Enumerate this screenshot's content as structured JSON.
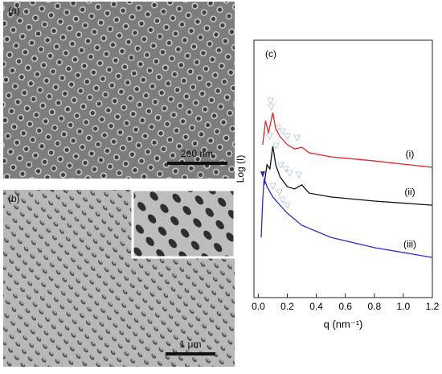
{
  "panels": {
    "a": {
      "label": "(a)",
      "scale_bar": "200 nm"
    },
    "b": {
      "label": "(b)",
      "scale_bar": "1 μm"
    }
  },
  "chart_data": {
    "type": "line",
    "panel_label": "(c)",
    "xlabel": "q (nm⁻¹)",
    "ylabel": "Log (I)",
    "xlim": [
      -0.03,
      1.2
    ],
    "ylim": [
      0,
      10
    ],
    "xticks": [
      {
        "value": 0,
        "label": "0.0"
      },
      0.2,
      0.4,
      0.6,
      0.8,
      {
        "value": 1,
        "label": "1.0"
      },
      1.2
    ],
    "series": [
      {
        "name": "(i)",
        "color": "#e8232a",
        "x": [
          0.03,
          0.05,
          0.07,
          0.1,
          0.12,
          0.15,
          0.2,
          0.25,
          0.3,
          0.35,
          0.5,
          0.8,
          1.2
        ],
        "values": [
          5.94,
          6.88,
          6.4,
          7.19,
          6.56,
          6.25,
          5.94,
          5.78,
          5.84,
          5.63,
          5.47,
          5.31,
          5.06
        ]
      },
      {
        "name": "(ii)",
        "color": "#111111",
        "x": [
          0.04,
          0.06,
          0.08,
          0.1,
          0.12,
          0.15,
          0.2,
          0.25,
          0.3,
          0.35,
          0.5,
          0.8,
          1.2
        ],
        "values": [
          4.38,
          5.16,
          5.0,
          5.88,
          5.16,
          4.69,
          4.31,
          4.22,
          4.38,
          4.06,
          3.91,
          3.75,
          3.59
        ]
      },
      {
        "name": "(iii)",
        "color": "#2a2ad0",
        "x": [
          0.02,
          0.03,
          0.04,
          0.06,
          0.1,
          0.15,
          0.2,
          0.3,
          0.5,
          0.8,
          1.2
        ],
        "values": [
          2.34,
          3.75,
          4.63,
          4.31,
          3.91,
          3.59,
          3.28,
          2.81,
          2.34,
          1.94,
          1.56
        ]
      }
    ]
  }
}
